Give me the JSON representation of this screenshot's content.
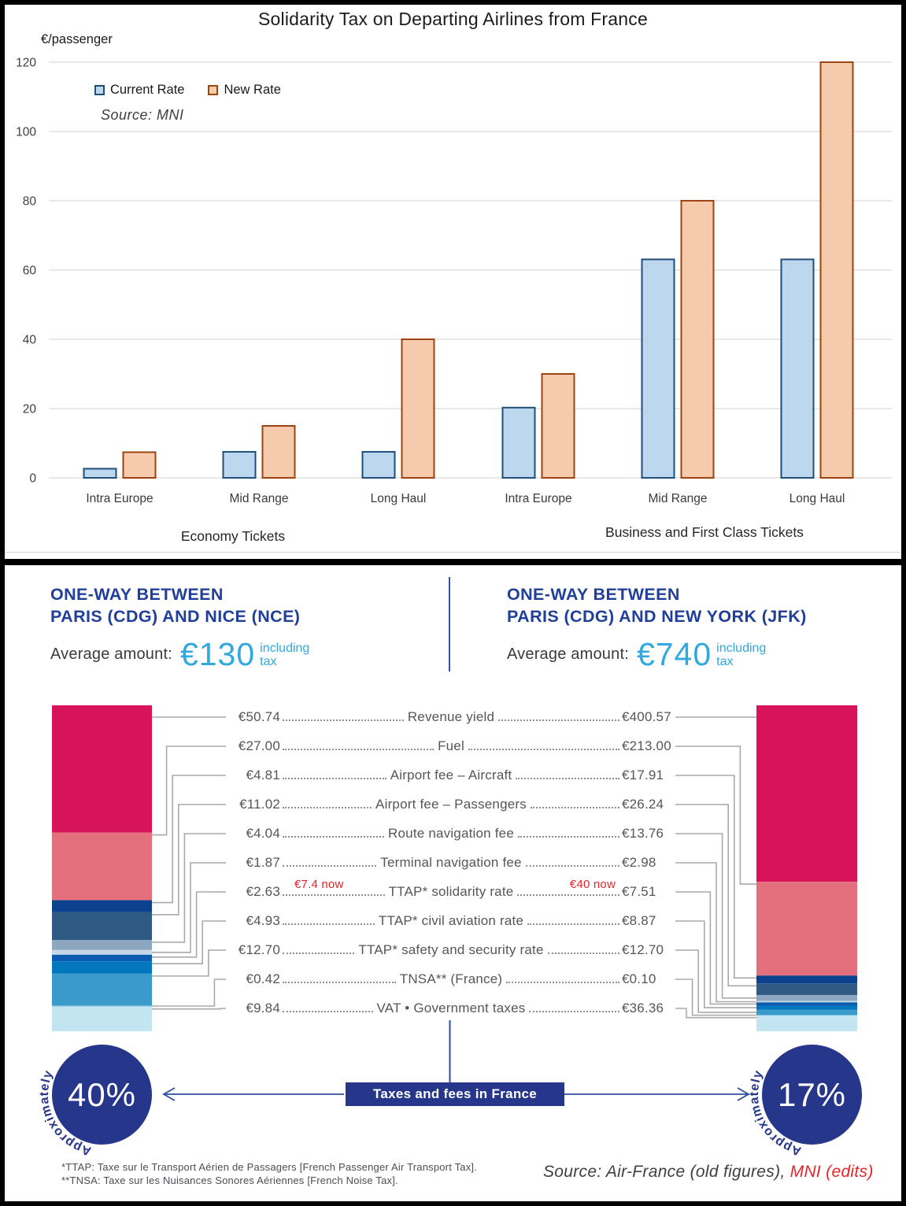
{
  "chart_data": [
    {
      "type": "bar",
      "title": "Solidarity Tax on Departing Airlines from France",
      "ylabel": "€/passenger",
      "ylim": [
        0,
        120
      ],
      "ytick_step": 20,
      "grid": true,
      "legend_position": "top-left",
      "categories": [
        "Intra Europe",
        "Mid Range",
        "Long Haul",
        "Intra Europe",
        "Mid Range",
        "Long Haul"
      ],
      "group_labels": [
        "Economy Tickets",
        "Business and First Class Tickets"
      ],
      "series": [
        {
          "name": "Current Rate",
          "values": [
            2.63,
            7.51,
            7.51,
            20.27,
            63.07,
            63.07
          ]
        },
        {
          "name": "New Rate",
          "values": [
            7.4,
            15,
            40,
            30,
            80,
            120
          ]
        }
      ]
    },
    {
      "type": "bar",
      "subtype": "stacked-comparison",
      "title": "Taxes and fees in France",
      "columns": [
        "Paris (CDG) and Nice (NCE), €130 including tax",
        "Paris (CDG) and New York (JFK), €740 including tax"
      ],
      "categories": [
        "Revenue yield",
        "Fuel",
        "Airport fee – Aircraft",
        "Airport fee – Passengers",
        "Route navigation fee",
        "Terminal navigation fee",
        "TTAP* solidarity rate",
        "TTAP* civil aviation rate",
        "TTAP* safety and security rate",
        "TNSA** (France)",
        "VAT • Government taxes"
      ],
      "series": [
        {
          "name": "CDG–NCE (total €130)",
          "values": [
            50.74,
            27.0,
            4.81,
            11.02,
            4.04,
            1.87,
            2.63,
            4.93,
            12.7,
            0.42,
            9.84
          ]
        },
        {
          "name": "CDG–JFK (total €740)",
          "values": [
            400.57,
            213.0,
            17.91,
            26.24,
            13.76,
            2.98,
            7.51,
            8.87,
            12.7,
            0.1,
            36.36
          ]
        }
      ],
      "annotations": [
        "€7.4 now",
        "€40 now"
      ],
      "taxes_share": [
        "Approximately 40%",
        "Approximately 17%"
      ]
    }
  ],
  "chart": {
    "title": "Solidarity Tax on Departing Airlines from France",
    "unit_label": "€/passenger",
    "source": "Source: MNI",
    "legend": [
      {
        "label": "Current Rate",
        "fill": "#BDD7EE",
        "stroke": "#1F4E79"
      },
      {
        "label": "New Rate",
        "fill": "#F5CBAB",
        "stroke": "#9C4512"
      }
    ],
    "grid_color": "#D9D9D9",
    "tick_labels": [
      "0",
      "20",
      "40",
      "60",
      "80",
      "100",
      "120"
    ]
  },
  "infographic": {
    "left": {
      "title_line1": "ONE-WAY BETWEEN",
      "title_line2": "PARIS (CDG) AND NICE (NCE)",
      "avg_label": "Average amount:",
      "amount": "€130",
      "suffix_line1": "including",
      "suffix_line2": "tax",
      "total": 130,
      "percent": "40%",
      "approx": "Approximately"
    },
    "right": {
      "title_line1": "ONE-WAY BETWEEN",
      "title_line2": "PARIS (CDG) AND NEW YORK (JFK)",
      "avg_label": "Average amount:",
      "amount": "€740",
      "suffix_line1": "including",
      "suffix_line2": "tax",
      "total": 740,
      "percent": "17%",
      "approx": "Approximately"
    },
    "fees": [
      {
        "label": "Revenue yield",
        "left": "€50.74",
        "right": "€400.57",
        "left_value": 50.74,
        "right_value": 400.57
      },
      {
        "label": "Fuel",
        "left": "€27.00",
        "right": "€213.00",
        "left_value": 27.0,
        "right_value": 213.0
      },
      {
        "label": "Airport fee – Aircraft",
        "left": "€4.81",
        "right": "€17.91",
        "left_value": 4.81,
        "right_value": 17.91
      },
      {
        "label": "Airport fee – Passengers",
        "left": "€11.02",
        "right": "€26.24",
        "left_value": 11.02,
        "right_value": 26.24
      },
      {
        "label": "Route navigation fee",
        "left": "€4.04",
        "right": "€13.76",
        "left_value": 4.04,
        "right_value": 13.76
      },
      {
        "label": "Terminal navigation fee",
        "left": "€1.87",
        "right": "€2.98",
        "left_value": 1.87,
        "right_value": 2.98
      },
      {
        "label": "TTAP* solidarity rate",
        "left": "€2.63",
        "right": "€7.51",
        "left_value": 2.63,
        "right_value": 7.51,
        "note_left": "€7.4 now",
        "note_right": "€40 now"
      },
      {
        "label": "TTAP* civil aviation rate",
        "left": "€4.93",
        "right": "€8.87",
        "left_value": 4.93,
        "right_value": 8.87
      },
      {
        "label": "TTAP* safety and security rate",
        "left": "€12.70",
        "right": "€12.70",
        "left_value": 12.7,
        "right_value": 12.7
      },
      {
        "label": "TNSA** (France)",
        "left": "€0.42",
        "right": "€0.10",
        "left_value": 0.42,
        "right_value": 0.1
      },
      {
        "label": "VAT • Government taxes",
        "left": "€9.84",
        "right": "€36.36",
        "left_value": 9.84,
        "right_value": 36.36
      }
    ],
    "segment_colors": [
      "#D6135B",
      "#E4707E",
      "#0B418F",
      "#2E5A84",
      "#8CA7BF",
      "#C6D8E6",
      "#0B5CB1",
      "#0277BE",
      "#3A9BCB",
      "#79B6D6",
      "#C3E5F2"
    ],
    "banner": "Taxes and fees in France",
    "footnote1": "*TTAP: Taxe sur le Transport Aérien de Passagers [French Passenger Air Transport Tax].",
    "footnote2": "**TNSA: Taxe sur les Nuisances Sonores Aériennes [French Noise Tax].",
    "source_plain": "Source: Air-France (old figures), ",
    "source_red": "MNI (edits)",
    "colors": {
      "navy": "#26368B",
      "header_blue": "#203F9A",
      "light_blue": "#31A9E0",
      "arrow_blue": "#2E4F9E",
      "red": "#E8232A",
      "fee_text": "#54565B",
      "connector": "#A9A9A9"
    }
  }
}
